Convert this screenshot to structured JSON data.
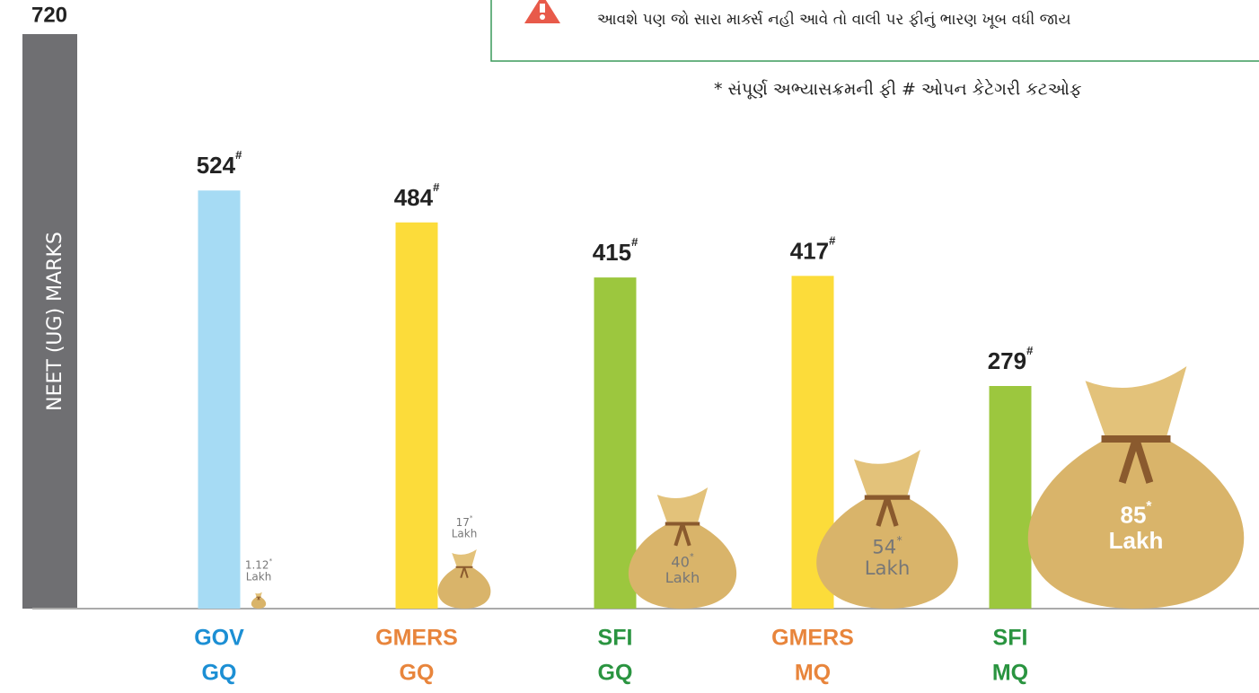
{
  "chart_data": {
    "type": "bar",
    "notice": "આવશે પણ જો સારા માર્ક્સ નહી આવે તો વાલી પર ફીનું ભારણ ખૂબ વધી જાય",
    "footnote": "* સંપૂર્ણ અભ્યાસક્રમની ફી   # ઓપન કેટેગરી કટઓફ",
    "y_label": "NEET (UG)  MARKS",
    "ylim": [
      0,
      720
    ],
    "yticks": [
      720
    ],
    "categories": [
      [
        "GOV",
        "GQ"
      ],
      [
        "GMERS",
        "GQ"
      ],
      [
        "SFI",
        "GQ"
      ],
      [
        "GMERS",
        "MQ"
      ],
      [
        "SFI",
        "MQ"
      ]
    ],
    "category_colors": [
      "#1c8fd4",
      "#e8853c",
      "#2a9440",
      "#e8853c",
      "#2a9440"
    ],
    "values": [
      524,
      484,
      415,
      417,
      279
    ],
    "value_marker": "#",
    "colors": [
      "#a6dbf4",
      "#fcdc3a",
      "#9cc73e",
      "#fcdc3a",
      "#9cc73e"
    ],
    "fees": [
      1.12,
      17,
      40,
      54,
      85
    ],
    "fee_marker": "*",
    "fee_unit": "Lakh",
    "bag_color": "#d9b46a"
  }
}
